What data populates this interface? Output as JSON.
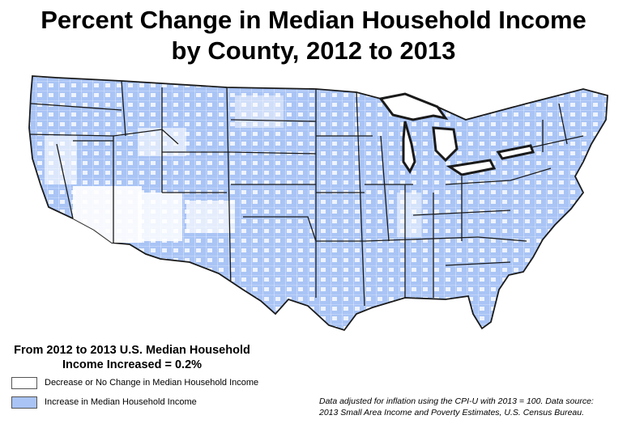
{
  "title": {
    "line1": "Percent Change in Median Household Income",
    "line2": "by County, 2012 to 2013"
  },
  "summary": {
    "line1": "From 2012 to 2013 U.S. Median Household",
    "line2": "Income Increased = 0.2%"
  },
  "legend": {
    "items": [
      {
        "label": "Decrease or No Change in Median Household Income",
        "color": "#ffffff"
      },
      {
        "label": "Increase in Median Household Income",
        "color": "#a9c4f5"
      }
    ]
  },
  "note": {
    "line1": "Data adjusted for inflation using the CPI-U with 2013 = 100. Data source:",
    "line2": "2013 Small Area Income and Poverty Estimates, U.S. Census Bureau."
  },
  "colors": {
    "increase": "#a9c4f5",
    "decrease": "#ffffff",
    "border": "#1a1a1a"
  }
}
